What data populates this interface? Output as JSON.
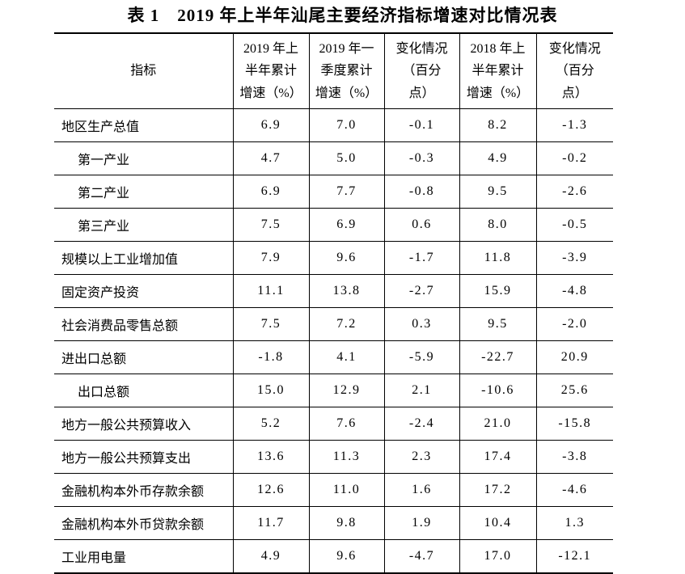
{
  "page": {
    "background_color": "#ffffff",
    "text_color": "#000000",
    "border_color": "#000000"
  },
  "title": "表 1　2019 年上半年汕尾主要经济指标增速对比情况表",
  "table": {
    "header": {
      "indicator_label": "指标",
      "columns": [
        "2019 年上\n半年累计\n增速（%）",
        "2019 年一\n季度累计\n增速（%）",
        "变化情况\n（百分\n点）",
        "2018 年上\n半年累计\n增速（%）",
        "变化情况\n（百分\n点）"
      ]
    },
    "rows": [
      {
        "indicator": "地区生产总值",
        "indent": false,
        "values": [
          "6.9",
          "7.0",
          "-0.1",
          "8.2",
          "-1.3"
        ]
      },
      {
        "indicator": "第一产业",
        "indent": true,
        "values": [
          "4.7",
          "5.0",
          "-0.3",
          "4.9",
          "-0.2"
        ]
      },
      {
        "indicator": "第二产业",
        "indent": true,
        "values": [
          "6.9",
          "7.7",
          "-0.8",
          "9.5",
          "-2.6"
        ]
      },
      {
        "indicator": "第三产业",
        "indent": true,
        "values": [
          "7.5",
          "6.9",
          "0.6",
          "8.0",
          "-0.5"
        ]
      },
      {
        "indicator": "规模以上工业增加值",
        "indent": false,
        "values": [
          "7.9",
          "9.6",
          "-1.7",
          "11.8",
          "-3.9"
        ]
      },
      {
        "indicator": "固定资产投资",
        "indent": false,
        "values": [
          "11.1",
          "13.8",
          "-2.7",
          "15.9",
          "-4.8"
        ]
      },
      {
        "indicator": "社会消费品零售总额",
        "indent": false,
        "values": [
          "7.5",
          "7.2",
          "0.3",
          "9.5",
          "-2.0"
        ]
      },
      {
        "indicator": "进出口总额",
        "indent": false,
        "values": [
          "-1.8",
          "4.1",
          "-5.9",
          "-22.7",
          "20.9"
        ]
      },
      {
        "indicator": "出口总额",
        "indent": true,
        "values": [
          "15.0",
          "12.9",
          "2.1",
          "-10.6",
          "25.6"
        ]
      },
      {
        "indicator": "地方一般公共预算收入",
        "indent": false,
        "values": [
          "5.2",
          "7.6",
          "-2.4",
          "21.0",
          "-15.8"
        ]
      },
      {
        "indicator": "地方一般公共预算支出",
        "indent": false,
        "values": [
          "13.6",
          "11.3",
          "2.3",
          "17.4",
          "-3.8"
        ]
      },
      {
        "indicator": "金融机构本外币存款余额",
        "indent": false,
        "values": [
          "12.6",
          "11.0",
          "1.6",
          "17.2",
          "-4.6"
        ]
      },
      {
        "indicator": "金融机构本外币贷款余额",
        "indent": false,
        "values": [
          "11.7",
          "9.8",
          "1.9",
          "10.4",
          "1.3"
        ]
      },
      {
        "indicator": "工业用电量",
        "indent": false,
        "values": [
          "4.9",
          "9.6",
          "-4.7",
          "17.0",
          "-12.1"
        ]
      }
    ]
  }
}
